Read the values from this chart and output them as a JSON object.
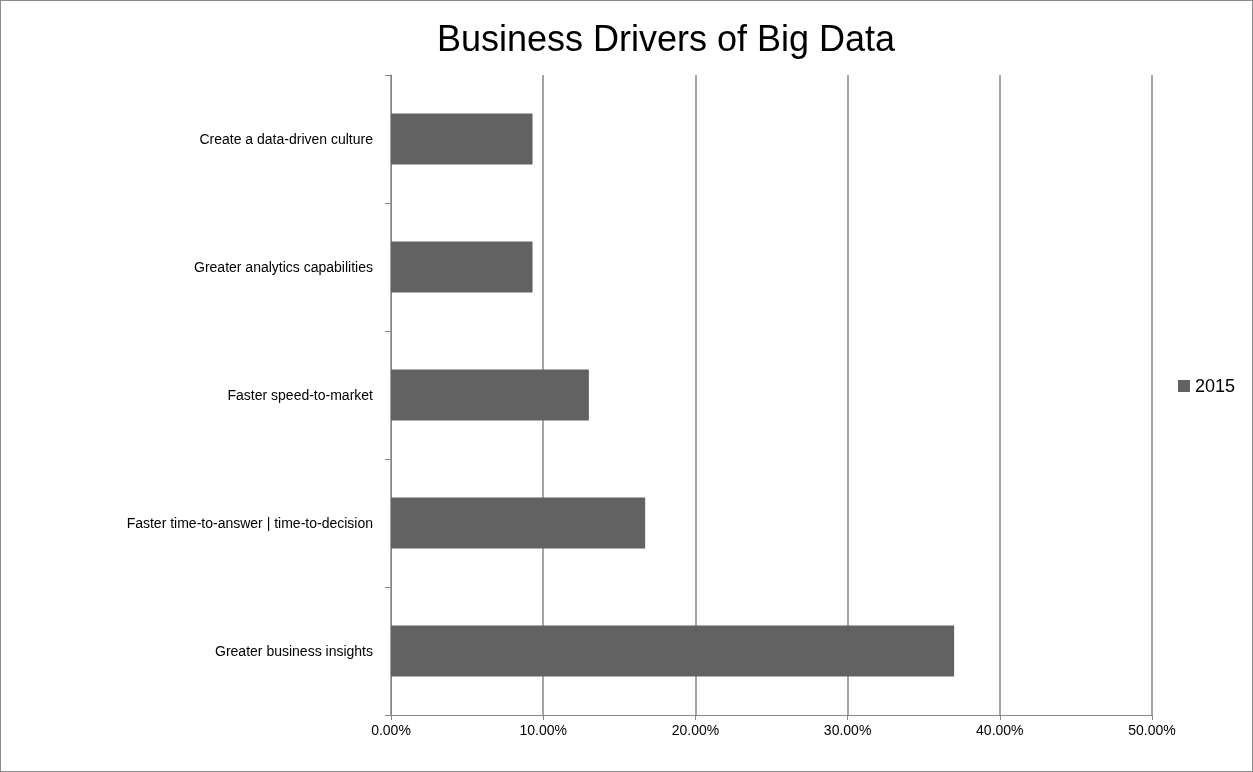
{
  "chart_data": {
    "type": "bar",
    "title": "Business Drivers of Big Data",
    "orientation": "horizontal",
    "categories": [
      "Create a data-driven culture",
      "Greater analytics capabilities",
      "Faster speed-to-market",
      "Faster time-to-answer | time-to-decision",
      "Greater business insights"
    ],
    "series": [
      {
        "name": "2015",
        "color": "#626262",
        "values": [
          9.3,
          9.3,
          13.0,
          16.7,
          37.0
        ]
      }
    ],
    "xlim": [
      0,
      50
    ],
    "xticks": [
      {
        "value": 0,
        "label": "0.00%"
      },
      {
        "value": 10,
        "label": "10.00%"
      },
      {
        "value": 20,
        "label": "20.00%"
      },
      {
        "value": 30,
        "label": "30.00%"
      },
      {
        "value": 40,
        "label": "40.00%"
      },
      {
        "value": 50,
        "label": "50.00%"
      }
    ],
    "grid": "x",
    "legend": "right"
  }
}
